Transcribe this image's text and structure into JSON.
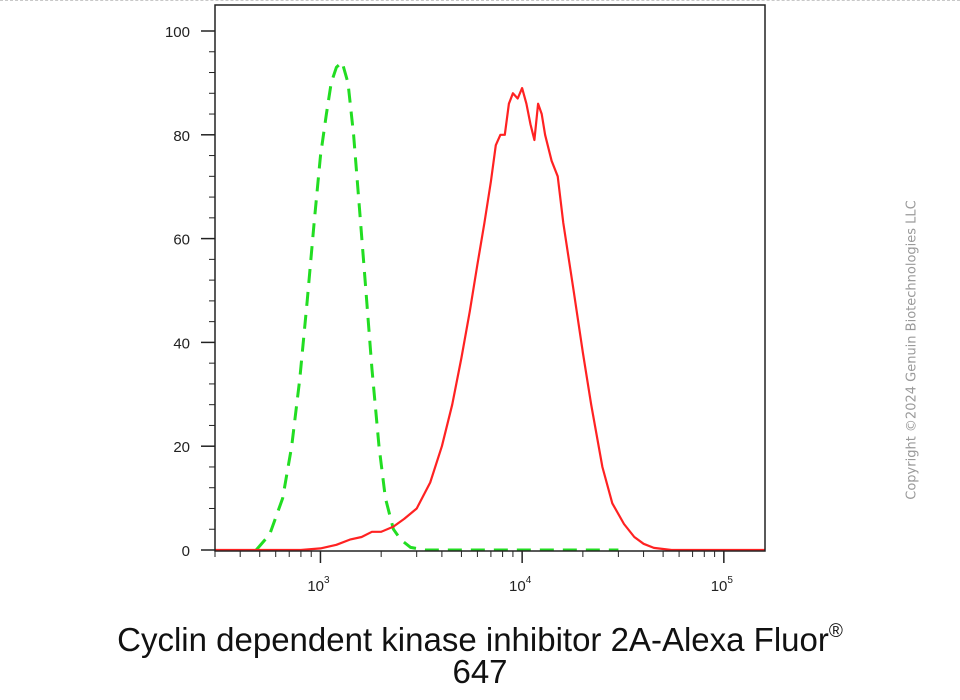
{
  "chart_data": {
    "type": "line",
    "title": "",
    "xlabel_line1": "Cyclin dependent kinase inhibitor 2A-Alexa Fluor",
    "xlabel_sup": "®",
    "xlabel_line2": "647",
    "ylabel": "",
    "x_scale": "log",
    "xlim": [
      300,
      160000
    ],
    "ylim": [
      0,
      105
    ],
    "x_ticks": [
      {
        "value": 1000,
        "base": "10",
        "exp": "3"
      },
      {
        "value": 10000,
        "base": "10",
        "exp": "4"
      },
      {
        "value": 100000,
        "base": "10",
        "exp": "5"
      }
    ],
    "y_ticks": [
      "0",
      "20",
      "40",
      "60",
      "80",
      "100"
    ],
    "grid": false,
    "legend": "none",
    "series": [
      {
        "color": "#22dd22",
        "style": "dashed",
        "points": [
          [
            480,
            0
          ],
          [
            560,
            3
          ],
          [
            650,
            10
          ],
          [
            720,
            20
          ],
          [
            790,
            33
          ],
          [
            860,
            48
          ],
          [
            930,
            63
          ],
          [
            1000,
            76
          ],
          [
            1070,
            84
          ],
          [
            1130,
            90
          ],
          [
            1200,
            93
          ],
          [
            1280,
            94
          ],
          [
            1370,
            90
          ],
          [
            1460,
            80
          ],
          [
            1560,
            66
          ],
          [
            1680,
            50
          ],
          [
            1800,
            35
          ],
          [
            1950,
            20
          ],
          [
            2100,
            10
          ],
          [
            2300,
            4
          ],
          [
            2500,
            2
          ],
          [
            2800,
            0.5
          ],
          [
            3300,
            0
          ],
          [
            30000,
            0
          ]
        ]
      },
      {
        "color": "#ff2222",
        "style": "solid",
        "points": [
          [
            300,
            0
          ],
          [
            800,
            0
          ],
          [
            1000,
            0.3
          ],
          [
            1200,
            1
          ],
          [
            1400,
            2
          ],
          [
            1600,
            2.5
          ],
          [
            1800,
            3.5
          ],
          [
            2000,
            3.5
          ],
          [
            2300,
            4.5
          ],
          [
            2600,
            6
          ],
          [
            3000,
            8
          ],
          [
            3500,
            13
          ],
          [
            4000,
            20
          ],
          [
            4500,
            28
          ],
          [
            5000,
            37
          ],
          [
            5500,
            46
          ],
          [
            6000,
            55
          ],
          [
            6500,
            63
          ],
          [
            7000,
            71
          ],
          [
            7400,
            78
          ],
          [
            7800,
            80
          ],
          [
            8200,
            80
          ],
          [
            8600,
            86
          ],
          [
            9000,
            88
          ],
          [
            9500,
            87
          ],
          [
            10000,
            89
          ],
          [
            10500,
            86
          ],
          [
            11000,
            82
          ],
          [
            11500,
            79
          ],
          [
            12000,
            86
          ],
          [
            12500,
            84
          ],
          [
            13000,
            80
          ],
          [
            14000,
            75
          ],
          [
            15000,
            72
          ],
          [
            16000,
            63
          ],
          [
            18000,
            50
          ],
          [
            20000,
            38
          ],
          [
            22000,
            28
          ],
          [
            25000,
            16
          ],
          [
            28000,
            9
          ],
          [
            32000,
            5
          ],
          [
            36000,
            2.5
          ],
          [
            40000,
            1.2
          ],
          [
            45000,
            0.4
          ],
          [
            55000,
            0
          ],
          [
            160000,
            0
          ]
        ]
      }
    ]
  },
  "copyright": "Copyright ©2024 Genuin Biotechnologies LLC"
}
